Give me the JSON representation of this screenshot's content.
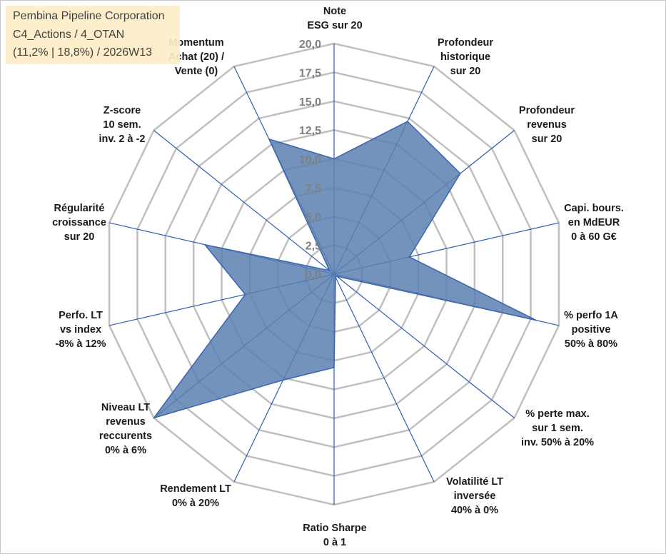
{
  "title": {
    "company": "Pembina Pipeline Corporation",
    "category": "C4_Actions / 4_OTAN",
    "stats": "(11,2% | 18,8%) / 2026W13"
  },
  "chart_data": {
    "type": "radar",
    "rmin": 0,
    "rmax": 20,
    "tick_step": 2.5,
    "tick_labels": [
      "0,0",
      "2,5",
      "5,0",
      "7,5",
      "10,0",
      "12,5",
      "15,0",
      "17,5",
      "20,0"
    ],
    "axes": [
      [
        "Note",
        "ESG sur 20"
      ],
      [
        "Profondeur",
        "historique",
        "sur 20"
      ],
      [
        "Profondeur",
        "revenus",
        "sur 20"
      ],
      [
        "Capi. bours.",
        "en MdEUR",
        "0 à 60 G€"
      ],
      [
        "% perfo 1A",
        "positive",
        "50% à 80%"
      ],
      [
        "% perte max.",
        "sur 1 sem.",
        "inv. 50% à 20%"
      ],
      [
        "Volatilité LT",
        "inversée",
        "40% à 0%"
      ],
      [
        "Ratio Sharpe",
        "0 à 1"
      ],
      [
        "Rendement LT",
        "0% à 20%"
      ],
      [
        "Niveau LT",
        "revenus",
        "reccurents",
        "0% à 6%"
      ],
      [
        "Perfo. LT",
        "vs index",
        "-8% à 12%"
      ],
      [
        "Régularité",
        "croissance",
        "sur 20"
      ],
      [
        "Z-score",
        "10 sem.",
        "inv. 2 à -2"
      ],
      [
        "Momentum",
        "Achat (20) /",
        "Vente (0)"
      ]
    ],
    "series": [
      {
        "name": "Pembina Pipeline Corporation",
        "color": "#5b80b0",
        "values": [
          10.0,
          14.7,
          14.0,
          6.7,
          18.0,
          0.3,
          0.3,
          8.1,
          10.2,
          20.0,
          7.9,
          11.5,
          0.5,
          13.0
        ]
      }
    ]
  }
}
